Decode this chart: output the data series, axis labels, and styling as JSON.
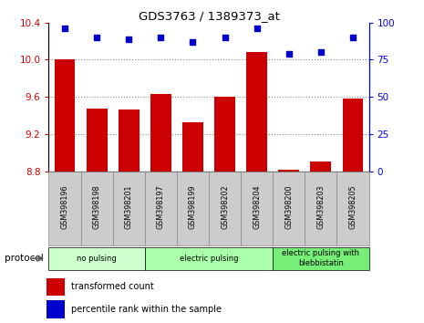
{
  "title": "GDS3763 / 1389373_at",
  "samples": [
    "GSM398196",
    "GSM398198",
    "GSM398201",
    "GSM398197",
    "GSM398199",
    "GSM398202",
    "GSM398204",
    "GSM398200",
    "GSM398203",
    "GSM398205"
  ],
  "bar_values": [
    10.0,
    9.47,
    9.46,
    9.63,
    9.33,
    9.6,
    10.08,
    8.82,
    8.9,
    9.58
  ],
  "percentile_values": [
    96,
    90,
    89,
    90,
    87,
    90,
    96,
    79,
    80,
    90
  ],
  "ylim_left": [
    8.8,
    10.4
  ],
  "ylim_right": [
    0,
    100
  ],
  "yticks_left": [
    8.8,
    9.2,
    9.6,
    10.0,
    10.4
  ],
  "yticks_right": [
    0,
    25,
    50,
    75,
    100
  ],
  "bar_color": "#cc0000",
  "dot_color": "#0000cc",
  "groups": [
    {
      "label": "no pulsing",
      "start": 0,
      "end": 3,
      "color": "#ccffcc"
    },
    {
      "label": "electric pulsing",
      "start": 3,
      "end": 7,
      "color": "#aaffaa"
    },
    {
      "label": "electric pulsing with\nblebbistatin",
      "start": 7,
      "end": 10,
      "color": "#77ee77"
    }
  ],
  "protocol_label": "protocol",
  "legend_bar_label": "transformed count",
  "legend_dot_label": "percentile rank within the sample",
  "grid_color": "#888888",
  "tick_label_color_left": "#cc0000",
  "tick_label_color_right": "#0000cc",
  "label_box_color": "#cccccc",
  "label_box_edge": "#888888"
}
